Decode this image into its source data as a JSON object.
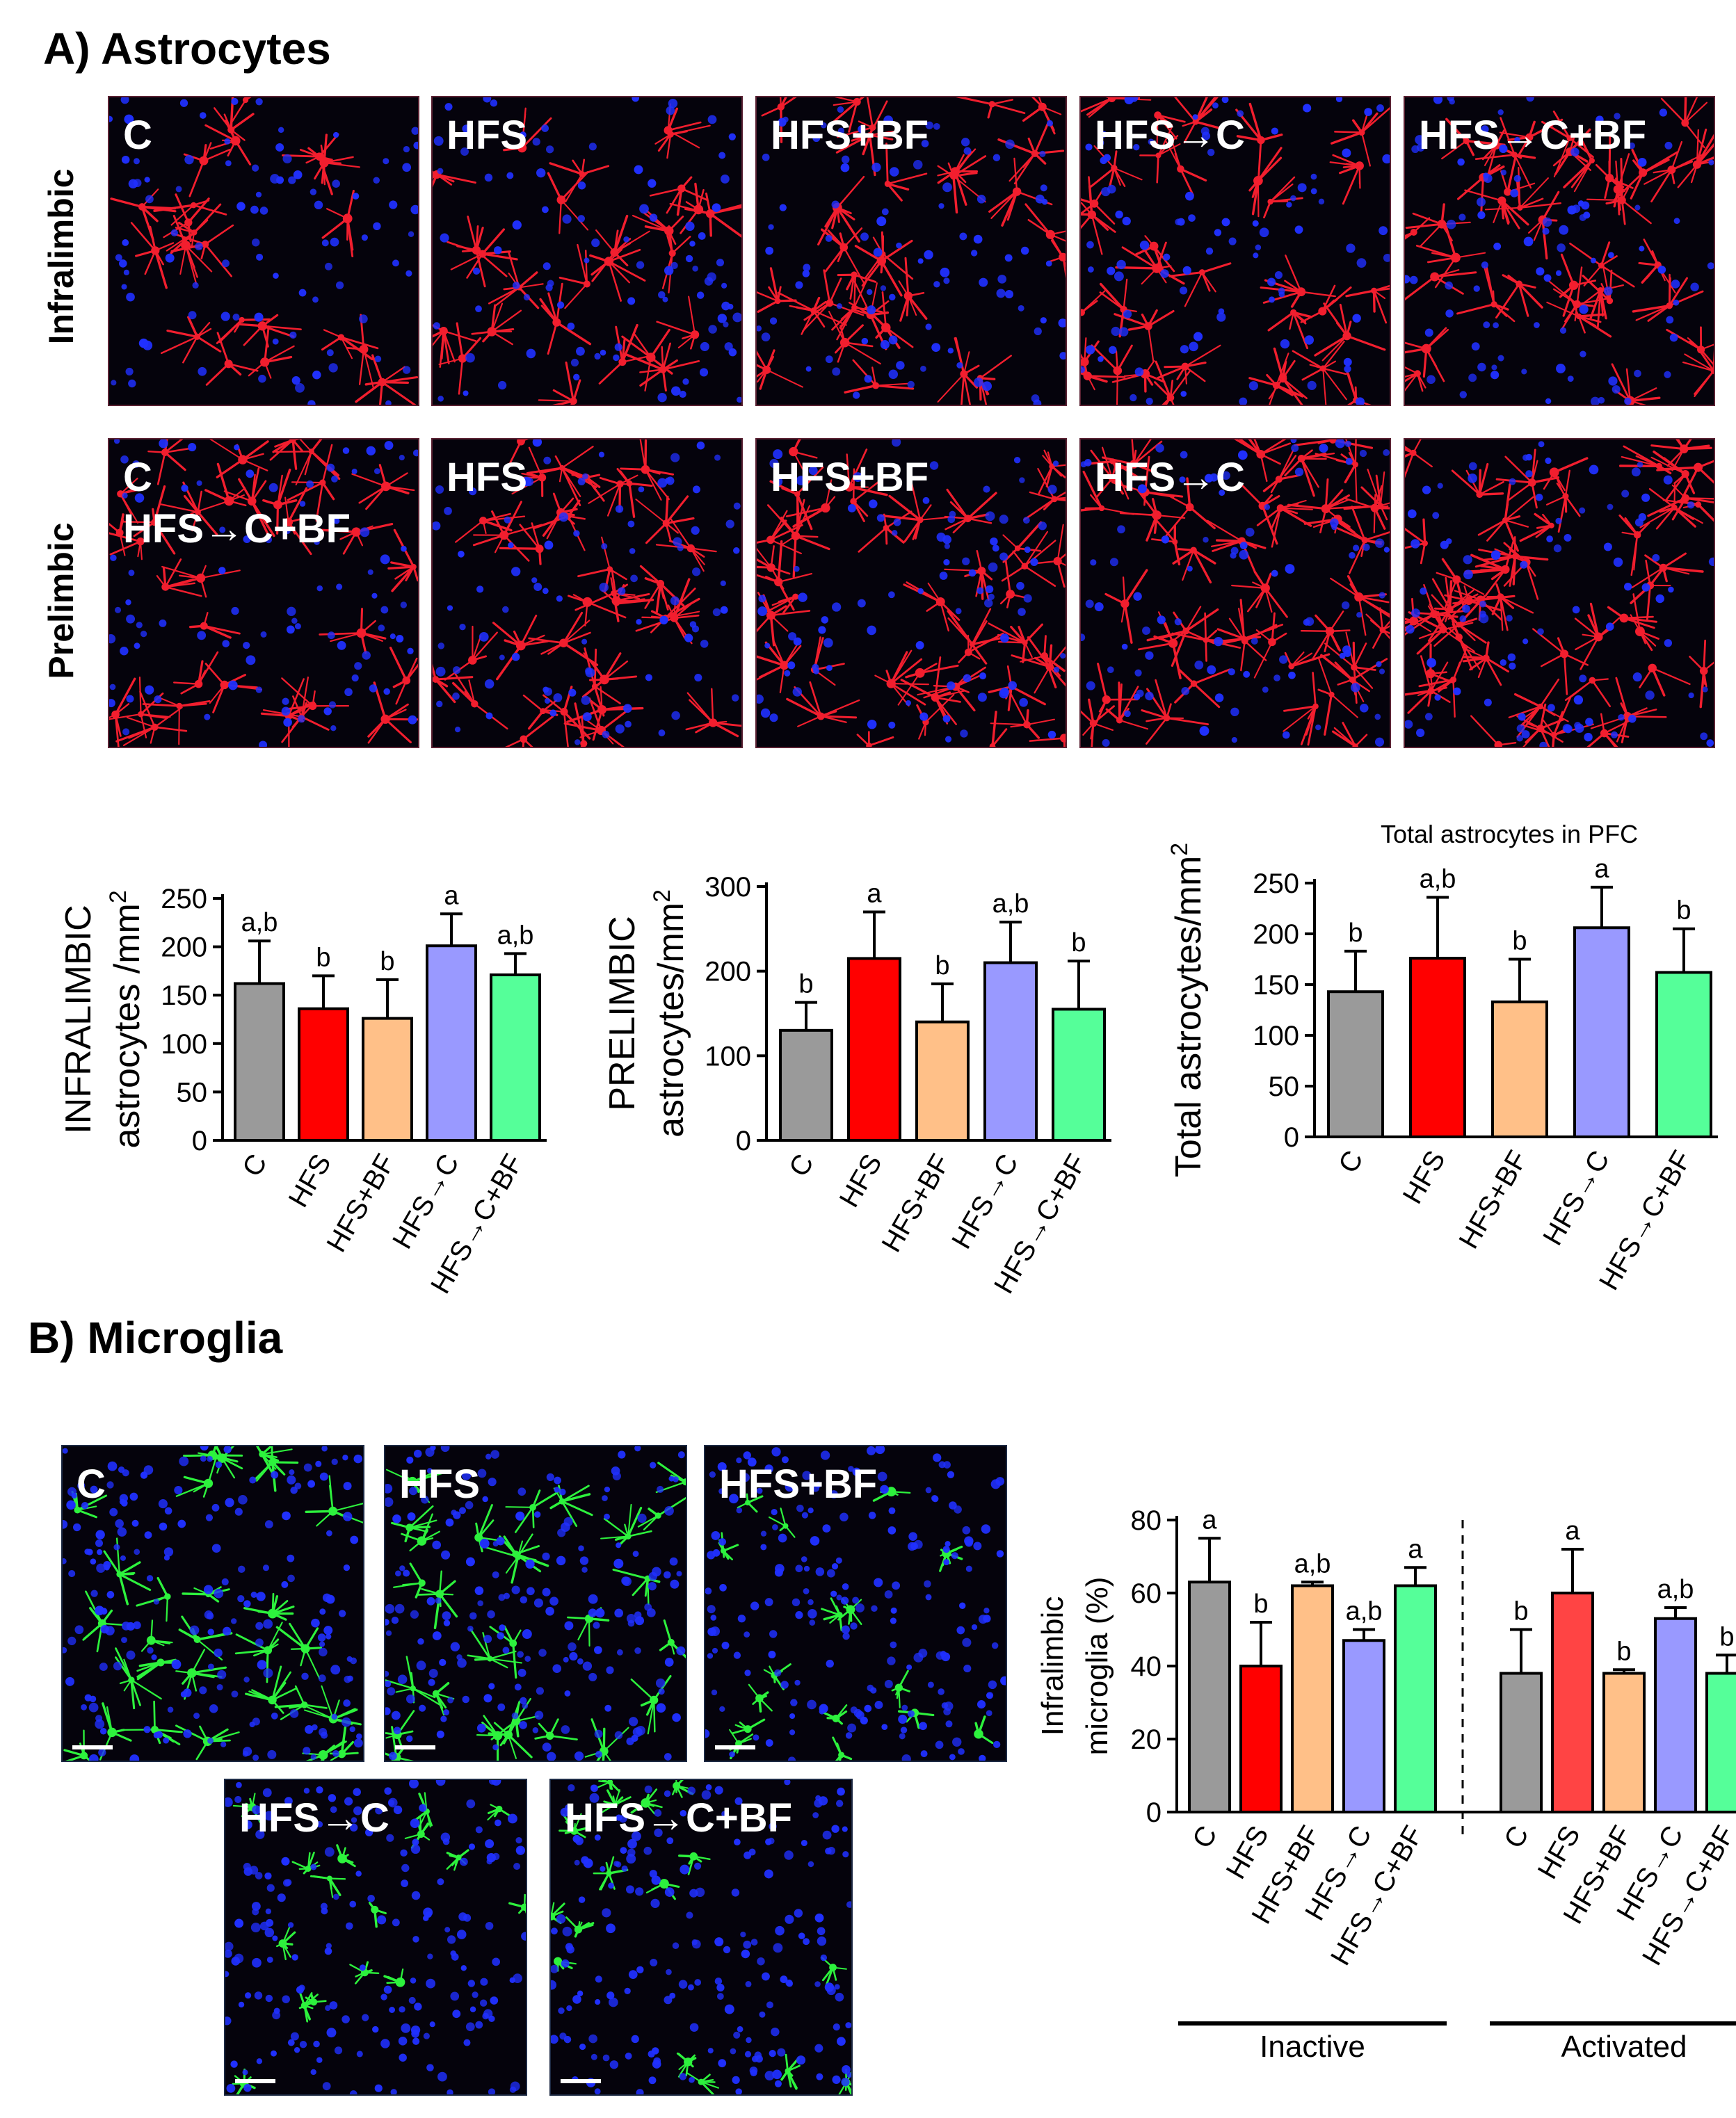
{
  "section_a": {
    "title": "A) Astrocytes"
  },
  "section_b": {
    "title": "B) Microglia"
  },
  "astro_rows": [
    {
      "label": "Infralimbic",
      "panels": [
        "C",
        "HFS",
        "HFS+BF",
        "HFS→C",
        "HFS→C+BF"
      ]
    },
    {
      "label": "Prelimbic",
      "panels": [
        "C\nHFS→C+BF",
        "HFS",
        "HFS+BF",
        "HFS→C",
        ""
      ]
    }
  ],
  "micro_panels": [
    "C",
    "HFS",
    "HFS+BF",
    "HFS→C",
    "HFS→C+BF"
  ],
  "colors": {
    "C": "#9a9a9a",
    "HFS": "#ff0000",
    "HFS+BF": "#ffc088",
    "HFS→C": "#9999ff",
    "HFS→C+BF": "#55ff99",
    "HFS_activated": "#ff4444",
    "astro_stain": "#ff2030",
    "nuclei": "#2030ff",
    "micro_stain": "#30ff40"
  },
  "chart_data": [
    {
      "type": "bar",
      "title": "",
      "ylabel": [
        "INFRALIMBIC",
        "astrocytes /mm2"
      ],
      "categories": [
        "C",
        "HFS",
        "HFS+BF",
        "HFS→C",
        "HFS→C+BF"
      ],
      "yticks": [
        "0",
        "50",
        "100",
        "150",
        "200",
        "250"
      ],
      "ylim": [
        0,
        250
      ],
      "series": [
        {
          "values": [
            162,
            136,
            126,
            201,
            171
          ],
          "errors": [
            44,
            34,
            40,
            33,
            22
          ],
          "letters": [
            "a,b",
            "b",
            "b",
            "a",
            "a,b"
          ]
        }
      ]
    },
    {
      "type": "bar",
      "title": "",
      "ylabel": [
        "PRELIMBIC",
        "astrocytes/mm2"
      ],
      "categories": [
        "C",
        "HFS",
        "HFS+BF",
        "HFS→C",
        "HFS→C+BF"
      ],
      "yticks": [
        "0",
        "100",
        "200",
        "300"
      ],
      "ylim": [
        0,
        300
      ],
      "series": [
        {
          "values": [
            130,
            215,
            140,
            210,
            155
          ],
          "errors": [
            33,
            55,
            45,
            48,
            57
          ],
          "letters": [
            "b",
            "a",
            "b",
            "a,b",
            "b"
          ]
        }
      ]
    },
    {
      "type": "bar",
      "title": "Total astrocytes in PFC",
      "ylabel": [
        "Total astrocytes/mm2"
      ],
      "categories": [
        "C",
        "HFS",
        "HFS+BF",
        "HFS→C",
        "HFS→C+BF"
      ],
      "yticks": [
        "0",
        "50",
        "100",
        "150",
        "200",
        "250"
      ],
      "ylim": [
        0,
        250
      ],
      "series": [
        {
          "values": [
            143,
            176,
            133,
            206,
            162
          ],
          "errors": [
            40,
            60,
            42,
            40,
            43
          ],
          "letters": [
            "b",
            "a,b",
            "b",
            "a",
            "b"
          ]
        }
      ]
    },
    {
      "type": "bar",
      "title": "",
      "ylabel": [
        "Infralimbic",
        "microglia (%)"
      ],
      "categories": [
        "C",
        "HFS",
        "HFS+BF",
        "HFS→C",
        "HFS→C+BF"
      ],
      "groups": [
        "Inactive",
        "Activated"
      ],
      "yticks": [
        "0",
        "20",
        "40",
        "60",
        "80"
      ],
      "ylim": [
        0,
        80
      ],
      "series": [
        {
          "name": "Inactive",
          "values": [
            63,
            40,
            62,
            47,
            62
          ],
          "errors": [
            12,
            12,
            1,
            3,
            5
          ],
          "letters": [
            "a",
            "b",
            "a,b",
            "a,b",
            "a"
          ]
        },
        {
          "name": "Activated",
          "values": [
            38,
            60,
            38,
            53,
            38
          ],
          "errors": [
            12,
            12,
            1,
            3,
            5
          ],
          "letters": [
            "b",
            "a",
            "b",
            "a,b",
            "b"
          ]
        }
      ]
    }
  ]
}
